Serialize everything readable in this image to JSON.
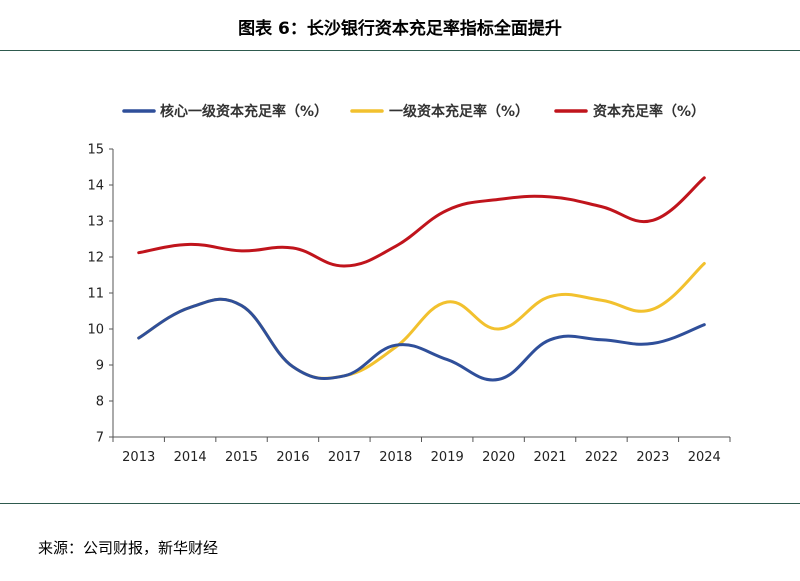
{
  "header": {
    "title": "图表 6：长沙银行资本充足率指标全面提升"
  },
  "footer": {
    "source": "来源：公司财报，新华财经"
  },
  "chart_data": {
    "type": "line",
    "x": [
      "2013",
      "2014",
      "2015",
      "2016",
      "2017",
      "2018",
      "2019",
      "2020",
      "2021",
      "2022",
      "2023",
      "2024"
    ],
    "ylim": [
      7,
      15
    ],
    "yticks": [
      7,
      8,
      9,
      10,
      11,
      12,
      13,
      14,
      15
    ],
    "grid": false,
    "legend_position": "top",
    "series": [
      {
        "name": "核心一级资本充足率（%）",
        "color": "#2f4f9a",
        "values": [
          9.75,
          10.6,
          10.65,
          8.95,
          8.7,
          9.55,
          9.15,
          8.6,
          9.7,
          9.7,
          9.6,
          10.12
        ]
      },
      {
        "name": "一级资本充足率（%）",
        "color": "#f2c12e",
        "values": [
          9.75,
          10.6,
          10.65,
          8.95,
          8.7,
          9.5,
          10.75,
          10.0,
          10.9,
          10.8,
          10.55,
          11.82
        ]
      },
      {
        "name": "资本充足率（%）",
        "color": "#c0141c",
        "values": [
          12.12,
          12.35,
          12.17,
          12.25,
          11.75,
          12.3,
          13.3,
          13.6,
          13.67,
          13.4,
          13.02,
          14.2
        ]
      }
    ]
  }
}
